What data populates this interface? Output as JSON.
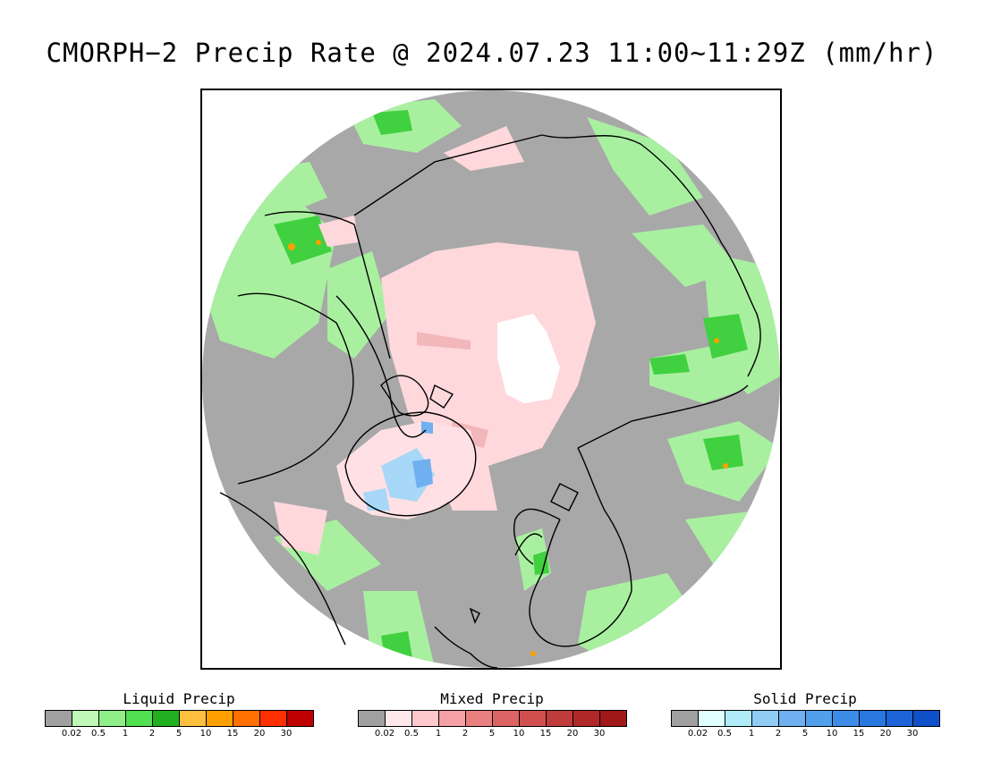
{
  "title": "CMORPH−2 Precip Rate @ 2024.07.23 11:00~11:29Z (mm/hr)",
  "legends": [
    {
      "label": "Liquid Precip",
      "colors": [
        "#a0a0a0",
        "#c0f8b8",
        "#90ee88",
        "#50e050",
        "#20b020",
        "#ffc040",
        "#ffa000",
        "#ff7000",
        "#ff3000",
        "#c00000"
      ],
      "ticks": [
        "0.02",
        "0.5",
        "1",
        "2",
        "5",
        "10",
        "15",
        "20",
        "30"
      ]
    },
    {
      "label": "Mixed Precip",
      "colors": [
        "#a0a0a0",
        "#ffe8ec",
        "#ffc8cc",
        "#f4a0a4",
        "#e88080",
        "#dc6464",
        "#d05050",
        "#c03c3c",
        "#b02828",
        "#a01818"
      ],
      "ticks": [
        "0.02",
        "0.5",
        "1",
        "2",
        "5",
        "10",
        "15",
        "20",
        "30"
      ]
    },
    {
      "label": "Solid Precip",
      "colors": [
        "#a0a0a0",
        "#e0ffff",
        "#b0ecf8",
        "#90ccf4",
        "#70b0f0",
        "#50a0ec",
        "#3c8ce8",
        "#2878e0",
        "#1c64d8",
        "#1050c8"
      ],
      "ticks": [
        "0.02",
        "0.5",
        "1",
        "2",
        "5",
        "10",
        "15",
        "20",
        "30"
      ]
    }
  ]
}
